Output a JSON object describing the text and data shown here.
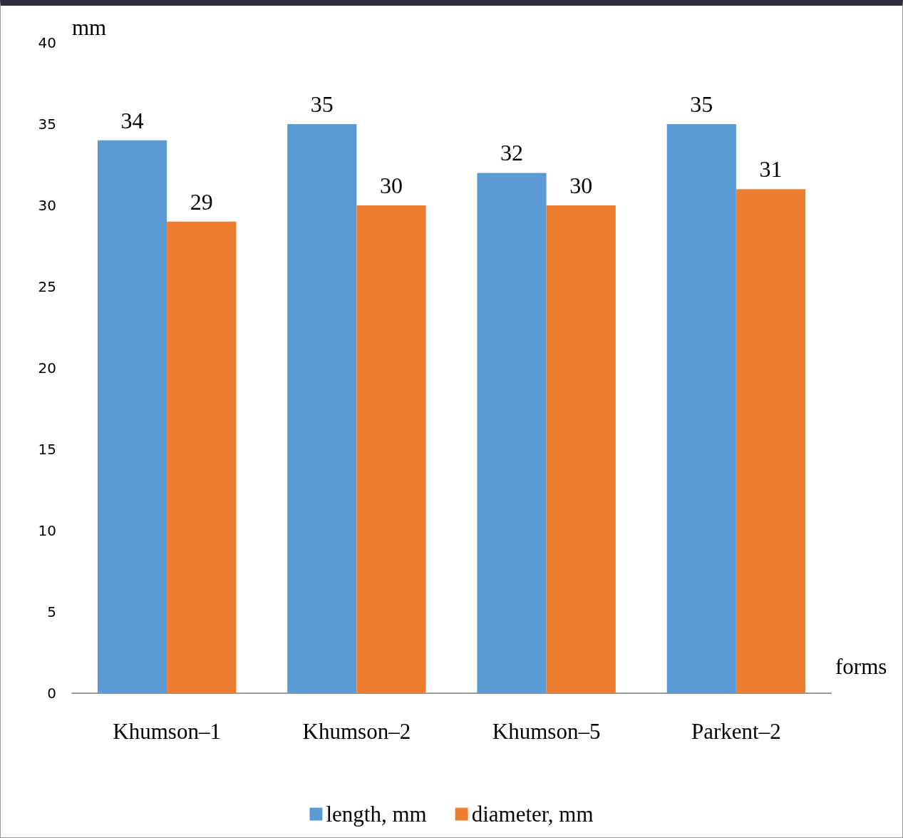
{
  "chart_data": {
    "type": "bar",
    "categories": [
      "Khumson–1",
      "Khumson–2",
      "Khumson–5",
      "Parkent–2"
    ],
    "series": [
      {
        "name": "length, mm",
        "color": "#5b9bd5",
        "values": [
          34,
          35,
          32,
          35
        ]
      },
      {
        "name": "diameter, mm",
        "color": "#ed7d31",
        "values": [
          29,
          30,
          30,
          31
        ]
      }
    ],
    "ylabel": "mm",
    "xlabel": "forms",
    "ylim": [
      0,
      40
    ],
    "yticks": [
      0,
      5,
      10,
      15,
      20,
      25,
      30,
      35,
      40
    ],
    "grid": false,
    "legend": "bottom",
    "data_labels": true
  }
}
